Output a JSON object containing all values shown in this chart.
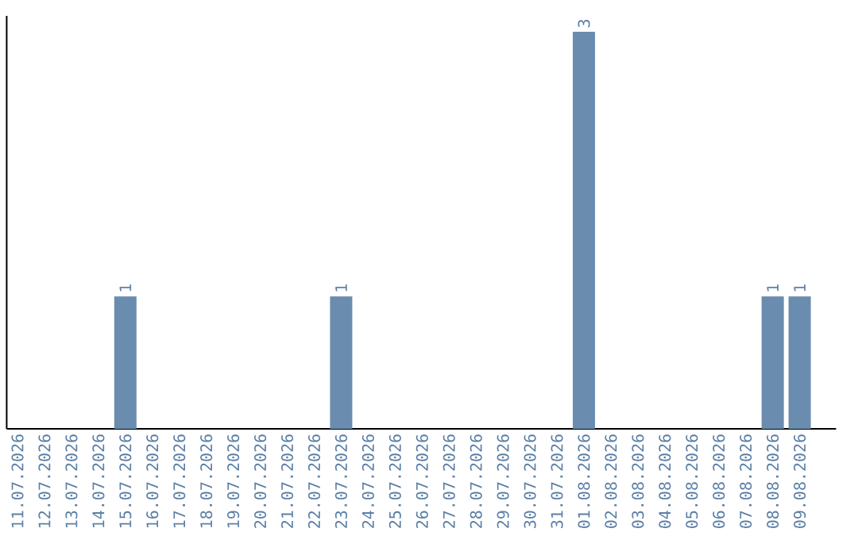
{
  "chart_data": {
    "type": "bar",
    "categories": [
      "11.07.2026",
      "12.07.2026",
      "13.07.2026",
      "14.07.2026",
      "15.07.2026",
      "16.07.2026",
      "17.07.2026",
      "18.07.2026",
      "19.07.2026",
      "20.07.2026",
      "21.07.2026",
      "22.07.2026",
      "23.07.2026",
      "24.07.2026",
      "25.07.2026",
      "26.07.2026",
      "27.07.2026",
      "28.07.2026",
      "29.07.2026",
      "30.07.2026",
      "31.07.2026",
      "01.08.2026",
      "02.08.2026",
      "03.08.2026",
      "04.08.2026",
      "05.08.2026",
      "06.08.2026",
      "07.08.2026",
      "08.08.2026",
      "09.08.2026"
    ],
    "values": [
      0,
      0,
      0,
      0,
      1,
      0,
      0,
      0,
      0,
      0,
      0,
      0,
      1,
      0,
      0,
      0,
      0,
      0,
      0,
      0,
      0,
      3,
      0,
      0,
      0,
      0,
      0,
      0,
      1,
      1
    ],
    "value_labels": [
      null,
      null,
      null,
      null,
      "1",
      null,
      null,
      null,
      null,
      null,
      null,
      null,
      "1",
      null,
      null,
      null,
      null,
      null,
      null,
      null,
      null,
      "3",
      null,
      null,
      null,
      null,
      null,
      null,
      "1",
      "1"
    ],
    "color": "#6a8caf",
    "ylim": [
      0,
      3.12
    ],
    "tick_labels": "x"
  }
}
